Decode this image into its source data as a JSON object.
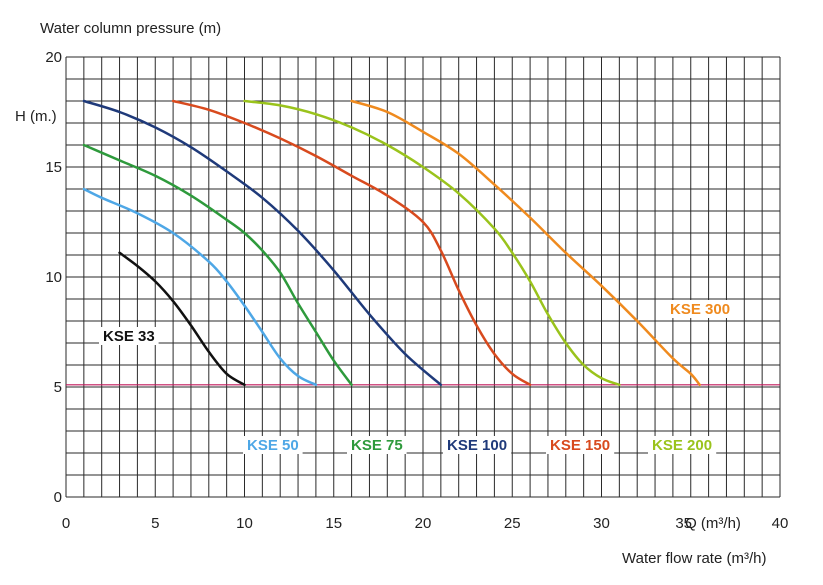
{
  "chart_data": {
    "type": "line",
    "title": "Water column pressure (m)",
    "ylabel": "H (m.)",
    "xlabel": "Water flow rate (m³/h)",
    "x_unit_label": "Q (m³/h)",
    "xlim": [
      0,
      40
    ],
    "ylim": [
      0,
      20
    ],
    "xticks": [
      0,
      5,
      10,
      15,
      20,
      25,
      30,
      35,
      40
    ],
    "yticks": [
      0,
      5,
      10,
      15,
      20
    ],
    "grid": true,
    "reference_line": {
      "y": 5.1,
      "color": "#c2185b"
    },
    "series": [
      {
        "name": "KSE 33",
        "color": "#111111",
        "points": [
          [
            3,
            11.1
          ],
          [
            4,
            10.5
          ],
          [
            5,
            9.8
          ],
          [
            6,
            8.9
          ],
          [
            7,
            7.8
          ],
          [
            8,
            6.6
          ],
          [
            9,
            5.6
          ],
          [
            10,
            5.1
          ]
        ]
      },
      {
        "name": "KSE 50",
        "color": "#4ea7e6",
        "points": [
          [
            1,
            14.0
          ],
          [
            2,
            13.6
          ],
          [
            4,
            12.9
          ],
          [
            6,
            12.0
          ],
          [
            8,
            10.7
          ],
          [
            9,
            9.8
          ],
          [
            10,
            8.7
          ],
          [
            11,
            7.5
          ],
          [
            12,
            6.3
          ],
          [
            13,
            5.5
          ],
          [
            14,
            5.1
          ]
        ]
      },
      {
        "name": "KSE 75",
        "color": "#2e9a3c",
        "points": [
          [
            1,
            16.0
          ],
          [
            3,
            15.3
          ],
          [
            5,
            14.6
          ],
          [
            7,
            13.7
          ],
          [
            9,
            12.6
          ],
          [
            10,
            12.0
          ],
          [
            11,
            11.2
          ],
          [
            12,
            10.2
          ],
          [
            13,
            8.8
          ],
          [
            14,
            7.5
          ],
          [
            15,
            6.2
          ],
          [
            16,
            5.1
          ]
        ]
      },
      {
        "name": "KSE 100",
        "color": "#1f3a7a",
        "points": [
          [
            1,
            18.0
          ],
          [
            3,
            17.5
          ],
          [
            5,
            16.8
          ],
          [
            7,
            15.9
          ],
          [
            9,
            14.8
          ],
          [
            11,
            13.6
          ],
          [
            13,
            12.1
          ],
          [
            15,
            10.3
          ],
          [
            17,
            8.3
          ],
          [
            19,
            6.5
          ],
          [
            21,
            5.1
          ]
        ]
      },
      {
        "name": "KSE 150",
        "color": "#d84a1e",
        "points": [
          [
            6,
            18.0
          ],
          [
            8,
            17.6
          ],
          [
            10,
            17.0
          ],
          [
            12,
            16.3
          ],
          [
            14,
            15.5
          ],
          [
            16,
            14.6
          ],
          [
            18,
            13.7
          ],
          [
            20,
            12.5
          ],
          [
            21,
            11.2
          ],
          [
            22,
            9.4
          ],
          [
            23,
            7.8
          ],
          [
            24,
            6.5
          ],
          [
            25,
            5.6
          ],
          [
            26,
            5.1
          ]
        ]
      },
      {
        "name": "KSE 200",
        "color": "#9ac31c",
        "points": [
          [
            10,
            18.0
          ],
          [
            12,
            17.8
          ],
          [
            14,
            17.4
          ],
          [
            16,
            16.8
          ],
          [
            18,
            16.0
          ],
          [
            20,
            15.0
          ],
          [
            22,
            13.8
          ],
          [
            24,
            12.2
          ],
          [
            25,
            11.1
          ],
          [
            26,
            9.8
          ],
          [
            27,
            8.3
          ],
          [
            28,
            7.0
          ],
          [
            29,
            6.0
          ],
          [
            30,
            5.4
          ],
          [
            31,
            5.1
          ]
        ]
      },
      {
        "name": "KSE 300",
        "color": "#ef8a1e",
        "points": [
          [
            16,
            18.0
          ],
          [
            18,
            17.5
          ],
          [
            20,
            16.6
          ],
          [
            22,
            15.6
          ],
          [
            24,
            14.2
          ],
          [
            26,
            12.7
          ],
          [
            28,
            11.1
          ],
          [
            30,
            9.6
          ],
          [
            32,
            8.0
          ],
          [
            34,
            6.3
          ],
          [
            35,
            5.6
          ],
          [
            35.5,
            5.1
          ]
        ]
      }
    ]
  }
}
